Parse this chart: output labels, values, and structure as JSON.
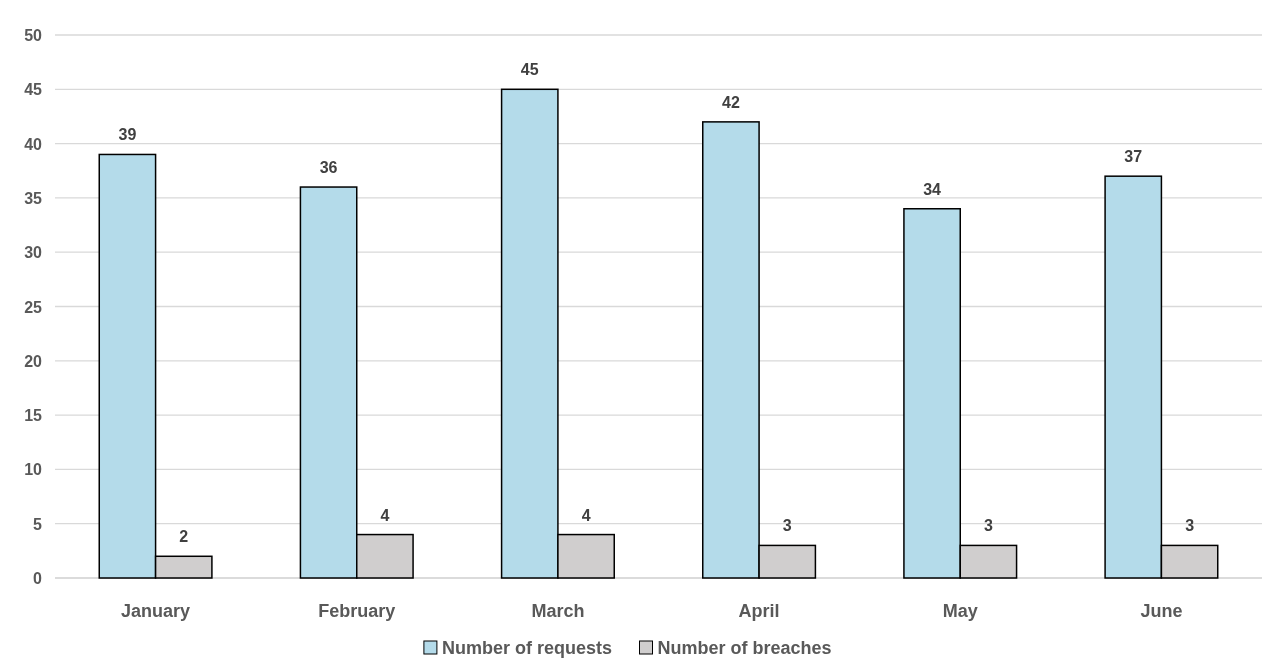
{
  "chart_data": {
    "type": "bar",
    "categories": [
      "January",
      "February",
      "March",
      "April",
      "May",
      "June"
    ],
    "series": [
      {
        "name": "Number of requests",
        "color": "#b4dbea",
        "values": [
          39,
          36,
          45,
          42,
          34,
          37
        ]
      },
      {
        "name": "Number of breaches",
        "color": "#d0cece",
        "values": [
          2,
          4,
          4,
          3,
          3,
          3
        ]
      }
    ],
    "ylim": [
      0,
      50
    ],
    "yticks": [
      0,
      5,
      10,
      15,
      20,
      25,
      30,
      35,
      40,
      45,
      50
    ],
    "grid": "y",
    "legend": "bottom",
    "data_labels": true
  }
}
